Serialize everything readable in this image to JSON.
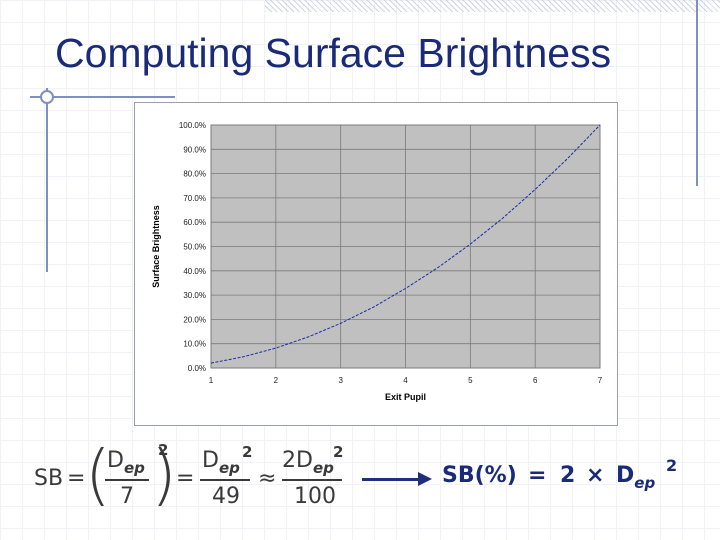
{
  "slide": {
    "title": "Computing Surface Brightness"
  },
  "colors": {
    "title": "#1a2a78",
    "plot_bg": "#c0c0c0",
    "series": "#1c2aa8",
    "arrow": "#1f2f7a"
  },
  "chart_data": {
    "type": "line",
    "xlabel": "Exit Pupil",
    "ylabel": "Surface Brightness",
    "xlim": [
      1,
      7
    ],
    "ylim": [
      0,
      100
    ],
    "x_ticks": [
      "1",
      "2",
      "3",
      "4",
      "5",
      "6",
      "7"
    ],
    "y_ticks": [
      "0.0%",
      "10.0%",
      "20.0%",
      "30.0%",
      "40.0%",
      "50.0%",
      "60.0%",
      "70.0%",
      "80.0%",
      "90.0%",
      "100.0%"
    ],
    "grid": true,
    "legend": "none",
    "series": [
      {
        "x": [
          1,
          1.5,
          2,
          2.5,
          3,
          3.5,
          4,
          4.5,
          5,
          5.5,
          6,
          6.5,
          7
        ],
        "y": [
          2.0,
          4.6,
          8.2,
          12.8,
          18.4,
          25.0,
          32.7,
          41.3,
          51.0,
          61.7,
          73.5,
          86.2,
          100.0
        ]
      }
    ]
  },
  "formula": {
    "lhs": "SB",
    "eq": "=",
    "approx": "≈",
    "d": "D",
    "ep": "ep",
    "sq": "2",
    "den1": "7",
    "den2": "49",
    "num3": "2D",
    "den3": "100",
    "result_lhs": "SB(%)",
    "result_eq": "=",
    "result_coeff": "2",
    "result_times": "×",
    "result_d": "D",
    "result_ep": "ep",
    "result_sq": "2"
  }
}
